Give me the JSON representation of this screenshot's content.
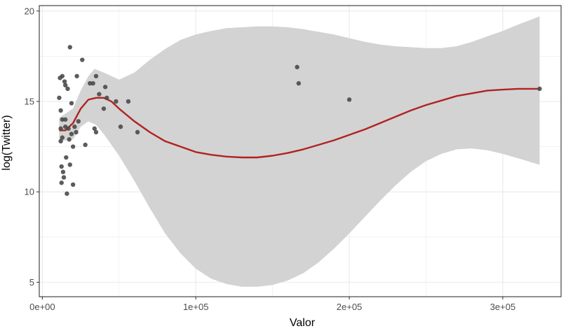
{
  "chart_data": {
    "type": "scatter",
    "title": "",
    "xlabel": "Valor",
    "ylabel": "log(Twitter)",
    "xlim": [
      -2000,
      338000
    ],
    "ylim": [
      4.2,
      20.3
    ],
    "xticks": [
      {
        "value": 0,
        "label": "0e+00"
      },
      {
        "value": 100000,
        "label": "1e+05"
      },
      {
        "value": 200000,
        "label": "2e+05"
      },
      {
        "value": 300000,
        "label": "3e+05"
      }
    ],
    "yticks": [
      {
        "value": 5,
        "label": "5"
      },
      {
        "value": 10,
        "label": "10"
      },
      {
        "value": 15,
        "label": "15"
      },
      {
        "value": 20,
        "label": "20"
      }
    ],
    "grid": true,
    "colors": {
      "points": "#4a4a4a",
      "smooth_line": "#b22222",
      "confidence_band": "#d3d3d3",
      "grid": "#ebebeb",
      "panel_border": "#333333"
    },
    "points": [
      {
        "x": 11000,
        "y": 15.2
      },
      {
        "x": 11500,
        "y": 16.3
      },
      {
        "x": 12000,
        "y": 14.5
      },
      {
        "x": 12000,
        "y": 13.5
      },
      {
        "x": 12000,
        "y": 12.8
      },
      {
        "x": 12500,
        "y": 11.4
      },
      {
        "x": 12500,
        "y": 10.5
      },
      {
        "x": 13000,
        "y": 16.4
      },
      {
        "x": 13000,
        "y": 14.0
      },
      {
        "x": 13000,
        "y": 13.0
      },
      {
        "x": 13500,
        "y": 11.1
      },
      {
        "x": 14000,
        "y": 10.8
      },
      {
        "x": 14500,
        "y": 16.1
      },
      {
        "x": 15000,
        "y": 15.9
      },
      {
        "x": 15000,
        "y": 14.0
      },
      {
        "x": 15000,
        "y": 13.6
      },
      {
        "x": 15500,
        "y": 11.9
      },
      {
        "x": 16000,
        "y": 9.9
      },
      {
        "x": 16500,
        "y": 15.7
      },
      {
        "x": 17000,
        "y": 13.5
      },
      {
        "x": 17500,
        "y": 12.9
      },
      {
        "x": 18000,
        "y": 18.0
      },
      {
        "x": 18000,
        "y": 11.5
      },
      {
        "x": 19000,
        "y": 14.9
      },
      {
        "x": 19000,
        "y": 13.2
      },
      {
        "x": 20000,
        "y": 12.5
      },
      {
        "x": 20000,
        "y": 10.4
      },
      {
        "x": 21000,
        "y": 13.6
      },
      {
        "x": 22000,
        "y": 13.3
      },
      {
        "x": 22500,
        "y": 16.4
      },
      {
        "x": 23500,
        "y": 13.9
      },
      {
        "x": 26000,
        "y": 17.3
      },
      {
        "x": 28000,
        "y": 12.6
      },
      {
        "x": 31000,
        "y": 16.0
      },
      {
        "x": 33000,
        "y": 16.0
      },
      {
        "x": 34000,
        "y": 13.5
      },
      {
        "x": 35000,
        "y": 13.3
      },
      {
        "x": 35000,
        "y": 16.4
      },
      {
        "x": 37000,
        "y": 15.4
      },
      {
        "x": 40000,
        "y": 14.6
      },
      {
        "x": 41000,
        "y": 15.8
      },
      {
        "x": 42000,
        "y": 15.2
      },
      {
        "x": 48000,
        "y": 15.0
      },
      {
        "x": 51000,
        "y": 13.6
      },
      {
        "x": 56000,
        "y": 15.0
      },
      {
        "x": 62000,
        "y": 13.3
      },
      {
        "x": 166000,
        "y": 16.9
      },
      {
        "x": 167000,
        "y": 16.0
      },
      {
        "x": 200000,
        "y": 15.1
      },
      {
        "x": 324000,
        "y": 15.7
      }
    ],
    "smooth_line": [
      {
        "x": 11000,
        "y": 13.4
      },
      {
        "x": 15000,
        "y": 13.4
      },
      {
        "x": 20000,
        "y": 13.8
      },
      {
        "x": 25000,
        "y": 14.6
      },
      {
        "x": 30000,
        "y": 15.1
      },
      {
        "x": 35000,
        "y": 15.2
      },
      {
        "x": 40000,
        "y": 15.2
      },
      {
        "x": 45000,
        "y": 15.0
      },
      {
        "x": 50000,
        "y": 14.6
      },
      {
        "x": 60000,
        "y": 13.9
      },
      {
        "x": 70000,
        "y": 13.3
      },
      {
        "x": 80000,
        "y": 12.8
      },
      {
        "x": 90000,
        "y": 12.5
      },
      {
        "x": 100000,
        "y": 12.2
      },
      {
        "x": 110000,
        "y": 12.05
      },
      {
        "x": 120000,
        "y": 11.95
      },
      {
        "x": 130000,
        "y": 11.9
      },
      {
        "x": 140000,
        "y": 11.9
      },
      {
        "x": 150000,
        "y": 12.0
      },
      {
        "x": 160000,
        "y": 12.15
      },
      {
        "x": 170000,
        "y": 12.35
      },
      {
        "x": 180000,
        "y": 12.6
      },
      {
        "x": 190000,
        "y": 12.85
      },
      {
        "x": 200000,
        "y": 13.15
      },
      {
        "x": 210000,
        "y": 13.45
      },
      {
        "x": 220000,
        "y": 13.8
      },
      {
        "x": 230000,
        "y": 14.15
      },
      {
        "x": 240000,
        "y": 14.5
      },
      {
        "x": 250000,
        "y": 14.8
      },
      {
        "x": 260000,
        "y": 15.05
      },
      {
        "x": 270000,
        "y": 15.3
      },
      {
        "x": 280000,
        "y": 15.45
      },
      {
        "x": 290000,
        "y": 15.6
      },
      {
        "x": 300000,
        "y": 15.65
      },
      {
        "x": 310000,
        "y": 15.7
      },
      {
        "x": 324000,
        "y": 15.7
      }
    ],
    "confidence_band": {
      "upper": [
        {
          "x": 11000,
          "y": 14.1
        },
        {
          "x": 20000,
          "y": 14.6
        },
        {
          "x": 25000,
          "y": 15.6
        },
        {
          "x": 30000,
          "y": 16.4
        },
        {
          "x": 34000,
          "y": 16.8
        },
        {
          "x": 40000,
          "y": 16.6
        },
        {
          "x": 50000,
          "y": 16.2
        },
        {
          "x": 60000,
          "y": 16.6
        },
        {
          "x": 70000,
          "y": 17.3
        },
        {
          "x": 80000,
          "y": 17.9
        },
        {
          "x": 90000,
          "y": 18.4
        },
        {
          "x": 100000,
          "y": 18.7
        },
        {
          "x": 110000,
          "y": 18.9
        },
        {
          "x": 120000,
          "y": 19.05
        },
        {
          "x": 130000,
          "y": 19.1
        },
        {
          "x": 140000,
          "y": 19.15
        },
        {
          "x": 150000,
          "y": 19.15
        },
        {
          "x": 160000,
          "y": 19.1
        },
        {
          "x": 170000,
          "y": 19.0
        },
        {
          "x": 180000,
          "y": 18.85
        },
        {
          "x": 190000,
          "y": 18.7
        },
        {
          "x": 200000,
          "y": 18.5
        },
        {
          "x": 210000,
          "y": 18.3
        },
        {
          "x": 220000,
          "y": 18.15
        },
        {
          "x": 230000,
          "y": 18.05
        },
        {
          "x": 240000,
          "y": 18.0
        },
        {
          "x": 250000,
          "y": 17.95
        },
        {
          "x": 260000,
          "y": 17.95
        },
        {
          "x": 270000,
          "y": 18.05
        },
        {
          "x": 280000,
          "y": 18.3
        },
        {
          "x": 290000,
          "y": 18.6
        },
        {
          "x": 300000,
          "y": 18.9
        },
        {
          "x": 310000,
          "y": 19.25
        },
        {
          "x": 324000,
          "y": 19.7
        }
      ],
      "lower": [
        {
          "x": 11000,
          "y": 12.8
        },
        {
          "x": 20000,
          "y": 12.9
        },
        {
          "x": 25000,
          "y": 13.6
        },
        {
          "x": 30000,
          "y": 13.9
        },
        {
          "x": 35000,
          "y": 13.7
        },
        {
          "x": 40000,
          "y": 13.2
        },
        {
          "x": 50000,
          "y": 12.0
        },
        {
          "x": 60000,
          "y": 10.6
        },
        {
          "x": 70000,
          "y": 9.1
        },
        {
          "x": 80000,
          "y": 7.7
        },
        {
          "x": 90000,
          "y": 6.6
        },
        {
          "x": 100000,
          "y": 5.75
        },
        {
          "x": 110000,
          "y": 5.2
        },
        {
          "x": 120000,
          "y": 4.9
        },
        {
          "x": 130000,
          "y": 4.75
        },
        {
          "x": 140000,
          "y": 4.75
        },
        {
          "x": 150000,
          "y": 4.85
        },
        {
          "x": 160000,
          "y": 5.1
        },
        {
          "x": 170000,
          "y": 5.5
        },
        {
          "x": 180000,
          "y": 6.1
        },
        {
          "x": 190000,
          "y": 6.85
        },
        {
          "x": 200000,
          "y": 7.7
        },
        {
          "x": 210000,
          "y": 8.6
        },
        {
          "x": 220000,
          "y": 9.5
        },
        {
          "x": 230000,
          "y": 10.35
        },
        {
          "x": 240000,
          "y": 11.1
        },
        {
          "x": 250000,
          "y": 11.7
        },
        {
          "x": 260000,
          "y": 12.1
        },
        {
          "x": 270000,
          "y": 12.35
        },
        {
          "x": 280000,
          "y": 12.4
        },
        {
          "x": 290000,
          "y": 12.3
        },
        {
          "x": 300000,
          "y": 12.1
        },
        {
          "x": 310000,
          "y": 11.85
        },
        {
          "x": 324000,
          "y": 11.5
        }
      ]
    }
  }
}
